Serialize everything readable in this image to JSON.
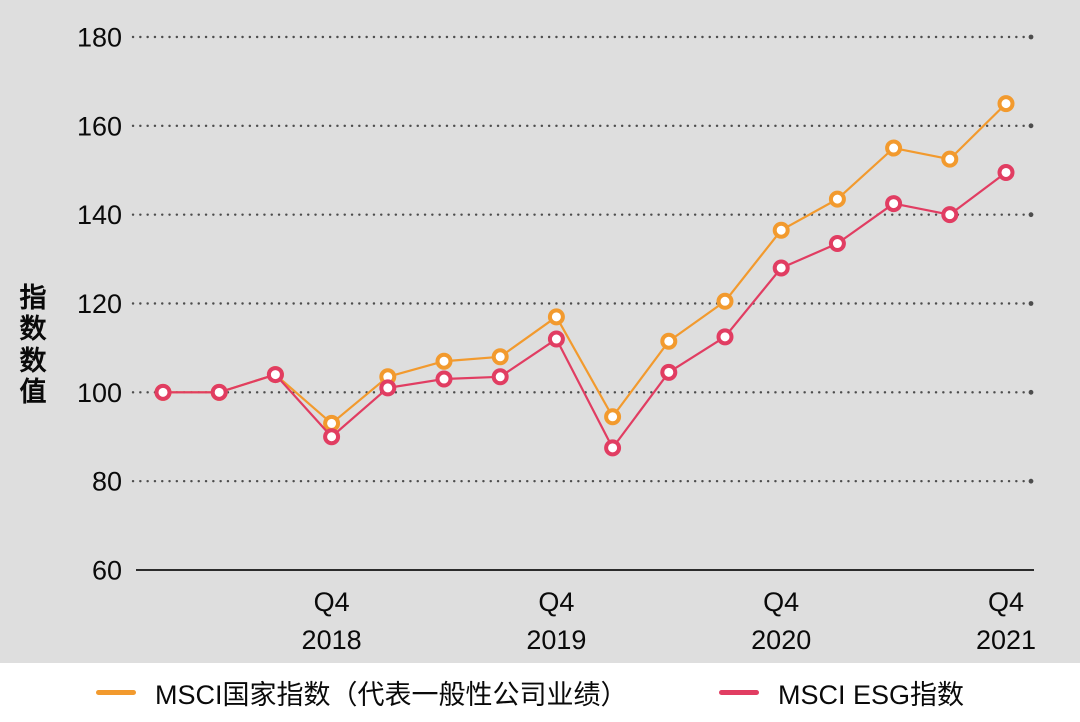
{
  "chart_data": {
    "type": "line",
    "title": "",
    "xlabel": "",
    "ylabel": "指数数值",
    "ylim": [
      60,
      180
    ],
    "y_ticks": [
      180,
      160,
      140,
      120,
      100,
      80,
      60
    ],
    "grid": "dotted-horizontal",
    "legend_position": "bottom",
    "categories": [
      "2018 Q1",
      "2018 Q2",
      "2018 Q3",
      "2018 Q4",
      "2019 Q1",
      "2019 Q2",
      "2019 Q3",
      "2019 Q4",
      "2020 Q1",
      "2020 Q2",
      "2020 Q3",
      "2020 Q4",
      "2021 Q1",
      "2021 Q2",
      "2021 Q3",
      "2021 Q4"
    ],
    "x_ticks": [
      {
        "quarter": "Q4",
        "year": "2018",
        "index": 3
      },
      {
        "quarter": "Q4",
        "year": "2019",
        "index": 7
      },
      {
        "quarter": "Q4",
        "year": "2020",
        "index": 11
      },
      {
        "quarter": "Q4",
        "year": "2021",
        "index": 15
      }
    ],
    "series": [
      {
        "name": "MSCI国家指数（代表一般性公司业绩）",
        "color": "#F29A2E",
        "values": [
          100,
          100,
          104,
          93,
          103.5,
          107,
          108,
          117,
          94.5,
          111.5,
          120.5,
          136.5,
          143.5,
          155,
          152.5,
          165
        ]
      },
      {
        "name": "MSCI ESG指数",
        "color": "#E13D62",
        "values": [
          100,
          100,
          104,
          90,
          101,
          103,
          103.5,
          112,
          87.5,
          104.5,
          112.5,
          128,
          133.5,
          142.5,
          140,
          149.5
        ]
      }
    ],
    "colors": {
      "background": "#DEDEDE",
      "text": "#0A0A0A",
      "grid": "#4D4D4D",
      "axis": "#2B2B2B"
    }
  }
}
